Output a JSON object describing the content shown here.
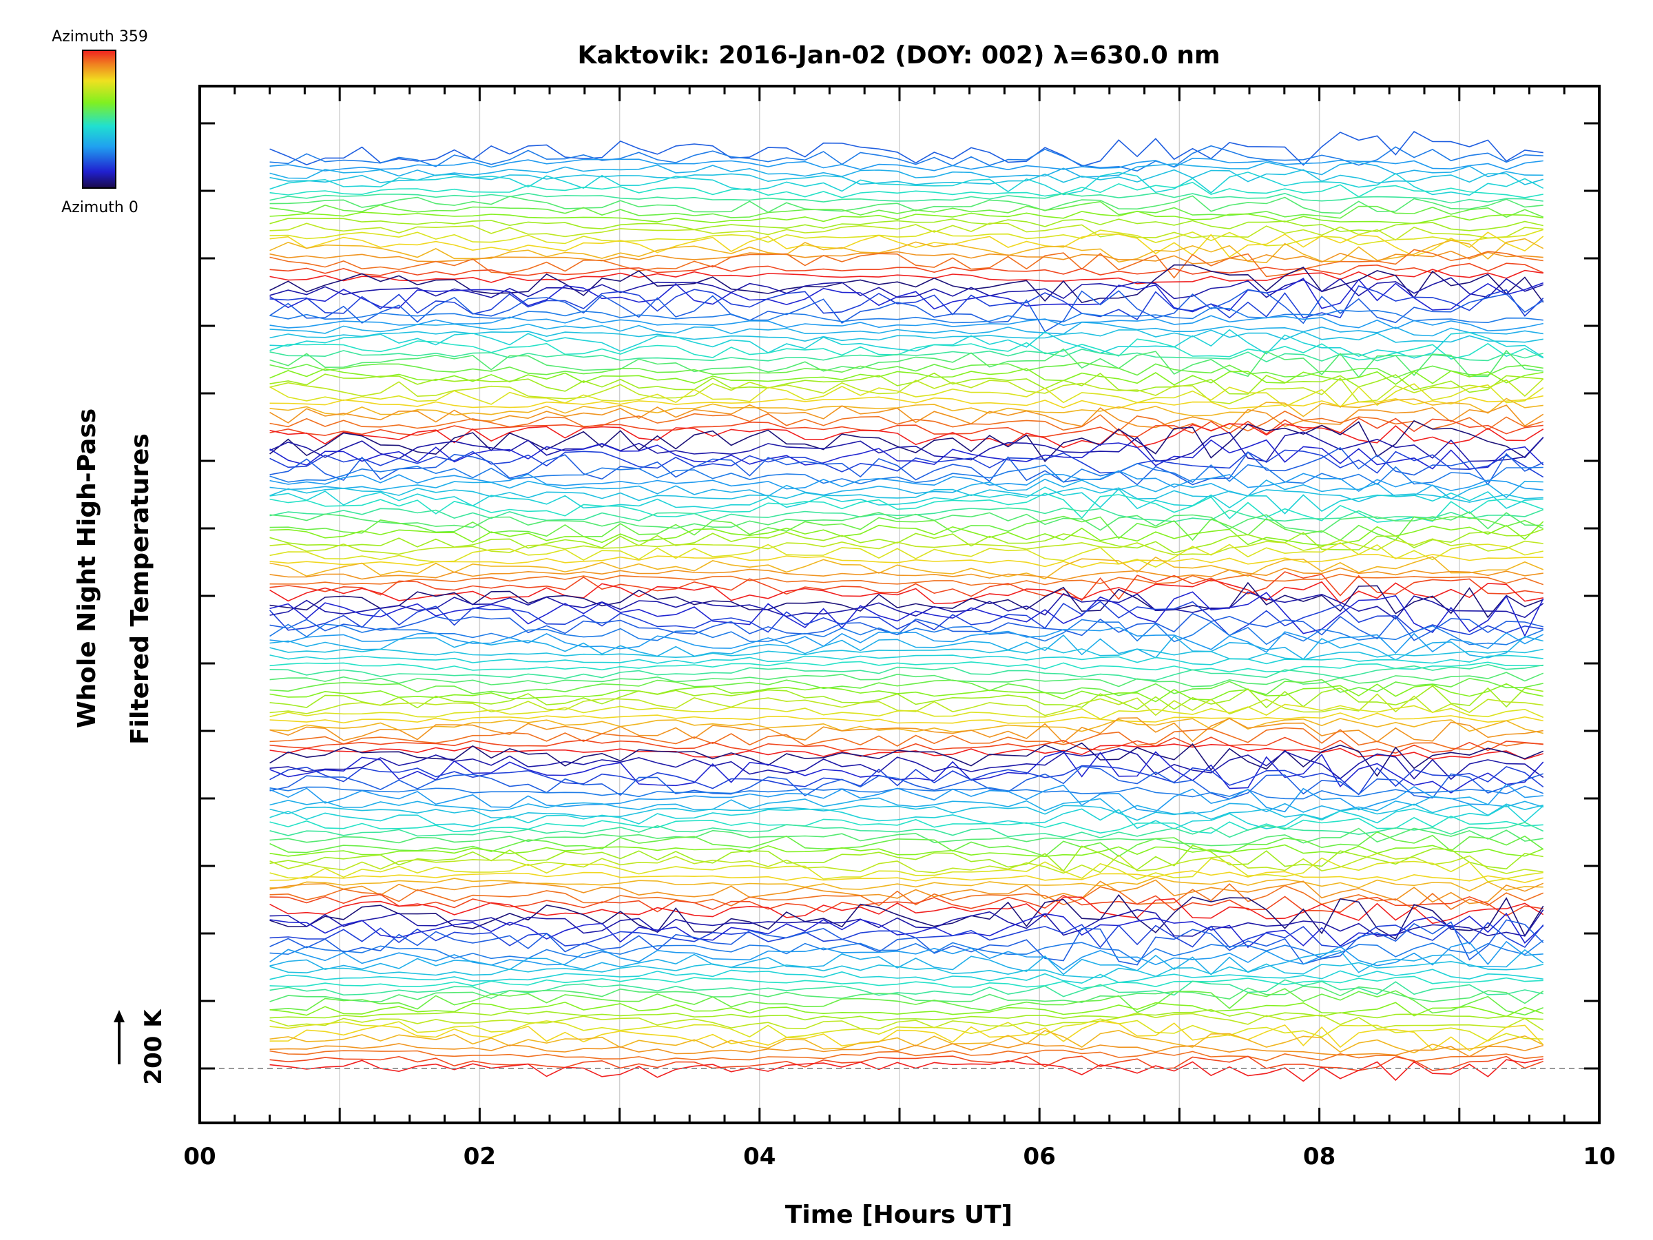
{
  "chart_data": {
    "type": "line",
    "title": "Kaktovik: 2016-Jan-02 (DOY: 002) λ=630.0 nm",
    "xlabel": "Time [Hours UT]",
    "ylabel_line1": "Whole Night High-Pass",
    "ylabel_line2": "Filtered Temperatures",
    "xlim": [
      0,
      10
    ],
    "x_ticks": [
      "00",
      "02",
      "04",
      "06",
      "08",
      "10"
    ],
    "x_minor_step": 0.25,
    "x_gridlines": [
      1,
      2,
      3,
      4,
      5,
      6,
      7,
      8,
      9
    ],
    "y_major_ticks": 15,
    "grid": "vertical",
    "scale_bar": {
      "label": "200 K"
    },
    "baseline": "dashed",
    "colorbar": {
      "colormap": "rainbow",
      "top_label": "Azimuth 359",
      "bottom_label": "Azimuth 0",
      "placement": "top-left"
    },
    "series_description": {
      "count": 140,
      "time_start_hours": 0.5,
      "time_end_hours": 9.6,
      "samples": 70,
      "stacked": true,
      "color_by": "azimuth"
    }
  }
}
